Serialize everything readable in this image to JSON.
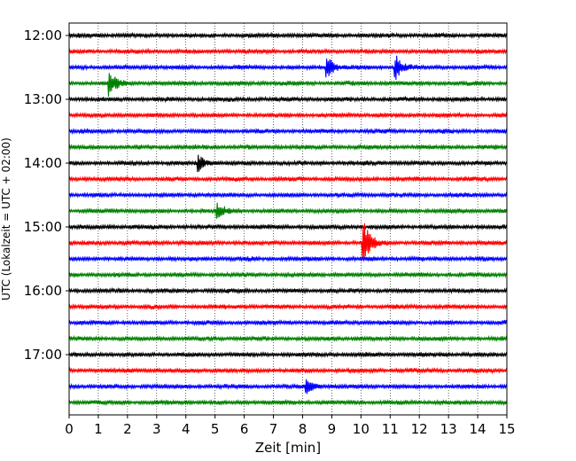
{
  "chart_data": {
    "type": "line",
    "subtype": "helicorder-seismogram",
    "xlabel": "Zeit  [min]",
    "ylabel": "UTC (Lokalzeit = UTC + 02:00)",
    "xlim": [
      0,
      15
    ],
    "x_ticks": [
      "0",
      "1",
      "2",
      "3",
      "4",
      "5",
      "6",
      "7",
      "8",
      "9",
      "10",
      "11",
      "12",
      "13",
      "14",
      "15"
    ],
    "y_ticks": [
      "12:00",
      "13:00",
      "14:00",
      "15:00",
      "16:00",
      "17:00"
    ],
    "grid": "vertical dotted at each minute",
    "trace_minutes_per_line": 15,
    "trace_start": "12:00",
    "trace_count": 24,
    "trace_colors": [
      "#000000",
      "#ff0000",
      "#0000ff",
      "#008000"
    ],
    "events": [
      {
        "line": 2,
        "minute": 8.8,
        "amplitude": "medium"
      },
      {
        "line": 2,
        "minute": 11.15,
        "amplitude": "medium"
      },
      {
        "line": 3,
        "minute": 1.35,
        "amplitude": "medium"
      },
      {
        "line": 8,
        "minute": 4.4,
        "amplitude": "small"
      },
      {
        "line": 11,
        "minute": 5.05,
        "amplitude": "small"
      },
      {
        "line": 13,
        "minute": 10.05,
        "amplitude": "small"
      },
      {
        "line": 13,
        "minute": 10.05,
        "amplitude": "large"
      },
      {
        "line": 22,
        "minute": 8.1,
        "amplitude": "small"
      }
    ]
  }
}
